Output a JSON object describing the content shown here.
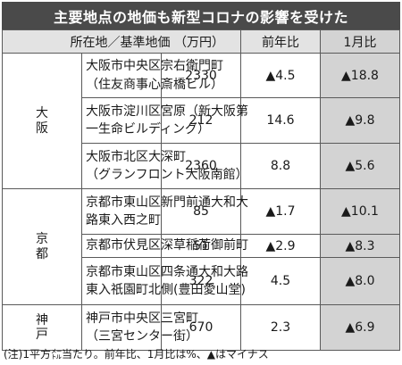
{
  "title": "主要地点の地価も新型コロナの影響を受けた",
  "headers": {
    "location_price": "所在地／基準地価 （万円）",
    "yoy": "前年比",
    "mom": "1月比"
  },
  "rows": [
    {
      "region": "大阪",
      "loc1": "大阪市中央区宗右衛門町",
      "loc2": "（住友商事心斎橋ビル）",
      "price": "2330",
      "yoy": "▲4.5",
      "mom": "▲18.8"
    },
    {
      "loc1": "大阪市淀川区宮原（新大阪第",
      "loc2": "一生命ビルディング）",
      "price": "212",
      "yoy": "14.6",
      "mom": "▲9.8"
    },
    {
      "loc1": "大阪市北区大深町",
      "loc2": "（グランフロント大阪南館）",
      "price": "2360",
      "yoy": "8.8",
      "mom": "▲5.6"
    },
    {
      "region": "京都",
      "loc1": "京都市東山区新門前通大和大",
      "loc2": "路東入西之町",
      "price": "85",
      "yoy": "▲1.7",
      "mom": "▲10.1"
    },
    {
      "loc1": "京都市伏見区深草稲荷御前町",
      "loc2": "",
      "price": "51",
      "yoy": "▲2.9",
      "mom": "▲8.3"
    },
    {
      "loc1": "京都市東山区四条通大和大路",
      "loc2": "東入祇園町北側(豊田愛山堂)",
      "price": "322",
      "yoy": "4.5",
      "mom": "▲8.0"
    },
    {
      "region": "神戸",
      "loc1": "神戸市中央区三宮町",
      "loc2": "（三宮センター街）",
      "price": "670",
      "yoy": "2.3",
      "mom": "▲6.9"
    }
  ],
  "footnote": "(注)1平方㍍当たり。前年比、1月比は%、▲はマイナス"
}
